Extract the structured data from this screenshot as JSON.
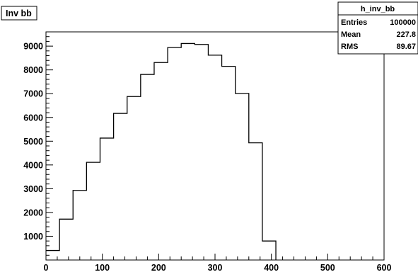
{
  "title_box": {
    "text": "Inv bb"
  },
  "stats_box": {
    "name": "h_inv_bb",
    "rows": [
      {
        "label": "Entries",
        "value": "100000"
      },
      {
        "label": "Mean",
        "value": "227.8"
      },
      {
        "label": "RMS",
        "value": "89.67"
      }
    ]
  },
  "colors": {
    "line": "#000000",
    "background": "#ffffff",
    "frame": "#000000"
  },
  "chart_data": {
    "type": "histogram",
    "title": "Inv bb",
    "xlabel": "",
    "ylabel": "",
    "xlim": [
      0,
      600
    ],
    "ylim": [
      0,
      9600
    ],
    "grid": false,
    "legend": "stats box top-right",
    "x_ticks": [
      0,
      100,
      200,
      300,
      400,
      500,
      600
    ],
    "y_ticks": [
      1000,
      2000,
      3000,
      4000,
      5000,
      6000,
      7000,
      8000,
      9000
    ],
    "y_tick_labels": [
      "1000",
      "2000",
      "3000",
      "4000",
      "5000",
      "6000",
      "7000",
      "8000",
      "9000"
    ],
    "x_tick_labels": [
      "0",
      "100",
      "200",
      "300",
      "400",
      "500",
      "600"
    ],
    "bin_edges": [
      0,
      24,
      48,
      72,
      96,
      120,
      144,
      168,
      192,
      216,
      240,
      264,
      288,
      312,
      336,
      360,
      384,
      408
    ],
    "values": [
      400,
      1720,
      2930,
      4110,
      5130,
      6170,
      6880,
      7810,
      8310,
      8940,
      9110,
      9070,
      8620,
      8150,
      7010,
      4930,
      800
    ]
  }
}
